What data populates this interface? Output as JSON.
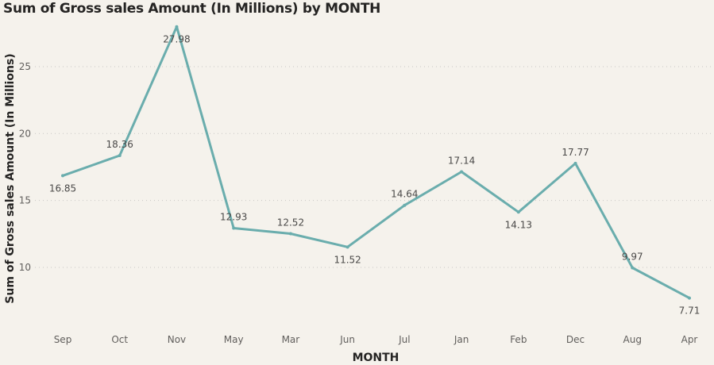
{
  "chart_data": {
    "type": "line",
    "title": "Sum of Gross sales Amount (In Millions) by MONTH",
    "xlabel": "MONTH",
    "ylabel": "Sum of Gross sales Amount (In Millions)",
    "categories": [
      "Sep",
      "Oct",
      "Nov",
      "May",
      "Mar",
      "Jun",
      "Jul",
      "Jan",
      "Feb",
      "Dec",
      "Aug",
      "Apr"
    ],
    "series": [
      {
        "values": [
          16.85,
          18.36,
          27.98,
          12.93,
          12.52,
          11.52,
          14.64,
          17.14,
          14.13,
          17.77,
          9.97,
          7.71
        ],
        "labels": [
          "16.85",
          "18.36",
          "27.98",
          "12.93",
          "12.52",
          "11.52",
          "14.64",
          "17.14",
          "14.13",
          "17.77",
          "9.97",
          "7.71"
        ],
        "label_positions": [
          "below",
          "above",
          "below",
          "above",
          "above",
          "below",
          "above",
          "above",
          "below",
          "above",
          "above",
          "below"
        ]
      }
    ],
    "yticks": [
      10,
      15,
      20,
      25
    ],
    "ytick_labels": [
      "10",
      "15",
      "20",
      "25"
    ],
    "ylim": [
      6.5,
      28.2
    ],
    "grid": true,
    "legend": "none",
    "line_color": "#6aadad"
  }
}
